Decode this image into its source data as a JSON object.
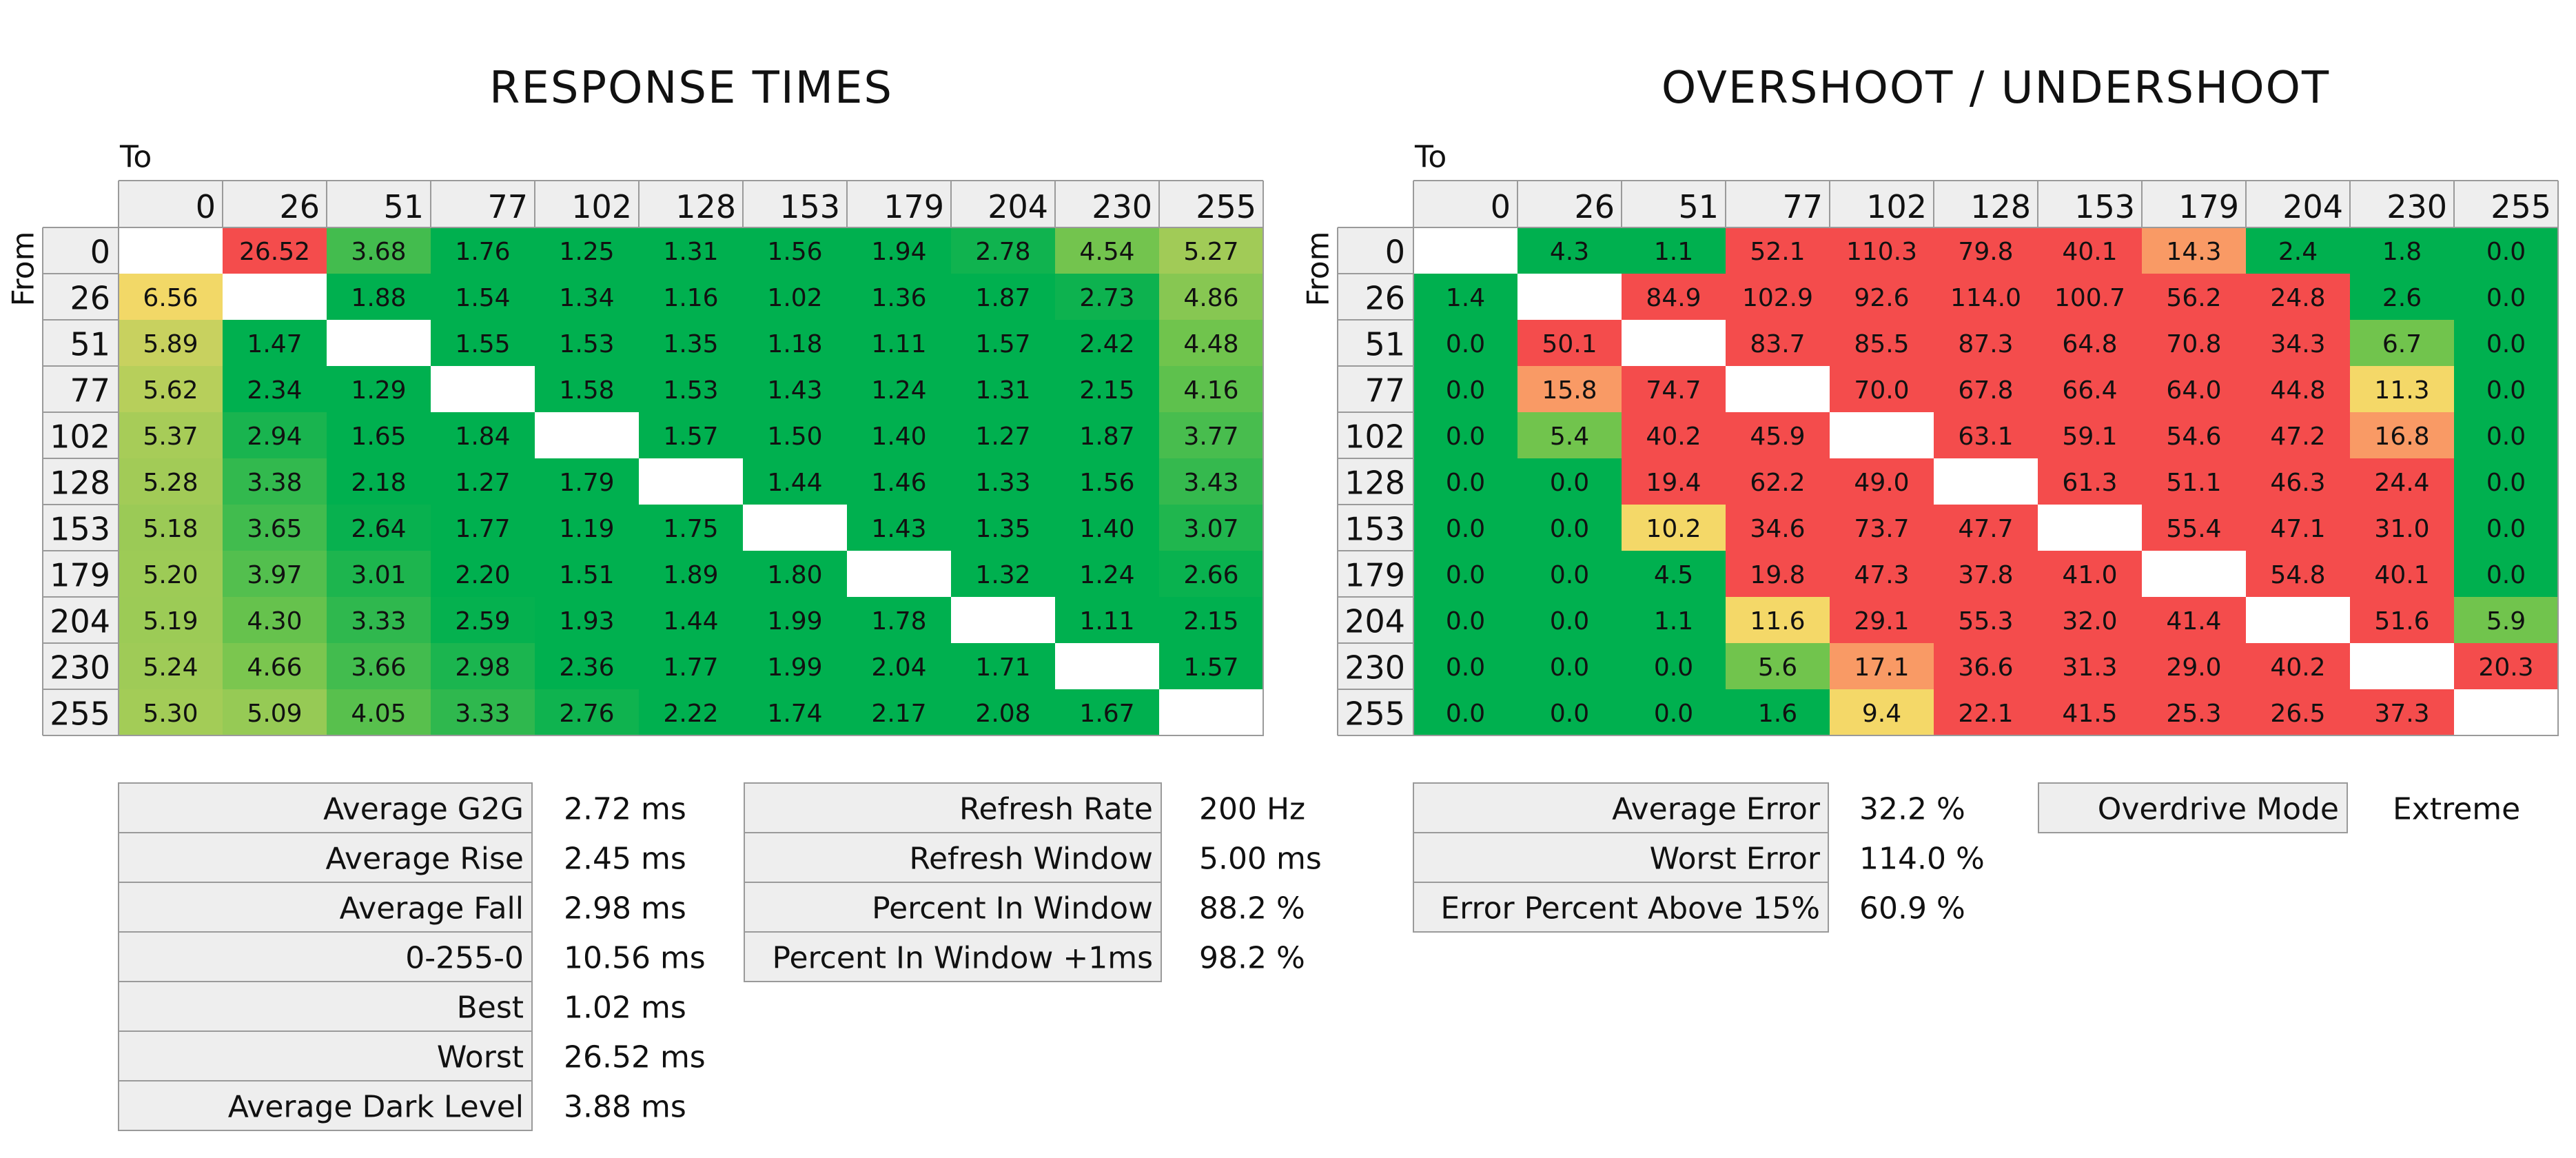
{
  "chart_data": [
    {
      "type": "heatmap",
      "title": "RESPONSE TIMES",
      "xlabel": "To",
      "ylabel": "From",
      "x": [
        "0",
        "26",
        "51",
        "77",
        "102",
        "128",
        "153",
        "179",
        "204",
        "230",
        "255"
      ],
      "y": [
        "0",
        "26",
        "51",
        "77",
        "102",
        "128",
        "153",
        "179",
        "204",
        "230",
        "255"
      ],
      "values": [
        [
          null,
          26.52,
          3.68,
          1.76,
          1.25,
          1.31,
          1.56,
          1.94,
          2.78,
          4.54,
          5.27
        ],
        [
          6.56,
          null,
          1.88,
          1.54,
          1.34,
          1.16,
          1.02,
          1.36,
          1.87,
          2.73,
          4.86
        ],
        [
          5.89,
          1.47,
          null,
          1.55,
          1.53,
          1.35,
          1.18,
          1.11,
          1.57,
          2.42,
          4.48
        ],
        [
          5.62,
          2.34,
          1.29,
          null,
          1.58,
          1.53,
          1.43,
          1.24,
          1.31,
          2.15,
          4.16
        ],
        [
          5.37,
          2.94,
          1.65,
          1.84,
          null,
          1.57,
          1.5,
          1.4,
          1.27,
          1.87,
          3.77
        ],
        [
          5.28,
          3.38,
          2.18,
          1.27,
          1.79,
          null,
          1.44,
          1.46,
          1.33,
          1.56,
          3.43
        ],
        [
          5.18,
          3.65,
          2.64,
          1.77,
          1.19,
          1.75,
          null,
          1.43,
          1.35,
          1.4,
          3.07
        ],
        [
          5.2,
          3.97,
          3.01,
          2.2,
          1.51,
          1.89,
          1.8,
          null,
          1.32,
          1.24,
          2.66
        ],
        [
          5.19,
          4.3,
          3.33,
          2.59,
          1.93,
          1.44,
          1.99,
          1.78,
          null,
          1.11,
          2.15
        ],
        [
          5.24,
          4.66,
          3.66,
          2.98,
          2.36,
          1.77,
          1.99,
          2.04,
          1.71,
          null,
          1.57
        ],
        [
          5.3,
          5.09,
          4.05,
          3.33,
          2.76,
          2.22,
          1.74,
          2.17,
          2.08,
          1.67,
          null
        ]
      ],
      "labels": [
        [
          "",
          "26.52",
          "3.68",
          "1.76",
          "1.25",
          "1.31",
          "1.56",
          "1.94",
          "2.78",
          "4.54",
          "5.27"
        ],
        [
          "6.56",
          "",
          "1.88",
          "1.54",
          "1.34",
          "1.16",
          "1.02",
          "1.36",
          "1.87",
          "2.73",
          "4.86"
        ],
        [
          "5.89",
          "1.47",
          "",
          "1.55",
          "1.53",
          "1.35",
          "1.18",
          "1.11",
          "1.57",
          "2.42",
          "4.48"
        ],
        [
          "5.62",
          "2.34",
          "1.29",
          "",
          "1.58",
          "1.53",
          "1.43",
          "1.24",
          "1.31",
          "2.15",
          "4.16"
        ],
        [
          "5.37",
          "2.94",
          "1.65",
          "1.84",
          "",
          "1.57",
          "1.50",
          "1.40",
          "1.27",
          "1.87",
          "3.77"
        ],
        [
          "5.28",
          "3.38",
          "2.18",
          "1.27",
          "1.79",
          "",
          "1.44",
          "1.46",
          "1.33",
          "1.56",
          "3.43"
        ],
        [
          "5.18",
          "3.65",
          "2.64",
          "1.77",
          "1.19",
          "1.75",
          "",
          "1.43",
          "1.35",
          "1.40",
          "3.07"
        ],
        [
          "5.20",
          "3.97",
          "3.01",
          "2.20",
          "1.51",
          "1.89",
          "1.80",
          "",
          "1.32",
          "1.24",
          "2.66"
        ],
        [
          "5.19",
          "4.30",
          "3.33",
          "2.59",
          "1.93",
          "1.44",
          "1.99",
          "1.78",
          "",
          "1.11",
          "2.15"
        ],
        [
          "5.24",
          "4.66",
          "3.66",
          "2.98",
          "2.36",
          "1.77",
          "1.99",
          "2.04",
          "1.71",
          "",
          "1.57"
        ],
        [
          "5.30",
          "5.09",
          "4.05",
          "3.33",
          "2.76",
          "2.22",
          "1.74",
          "2.17",
          "2.08",
          "1.67",
          ""
        ]
      ]
    },
    {
      "type": "heatmap",
      "title": "OVERSHOOT / UNDERSHOOT",
      "xlabel": "To",
      "ylabel": "From",
      "x": [
        "0",
        "26",
        "51",
        "77",
        "102",
        "128",
        "153",
        "179",
        "204",
        "230",
        "255"
      ],
      "y": [
        "0",
        "26",
        "51",
        "77",
        "102",
        "128",
        "153",
        "179",
        "204",
        "230",
        "255"
      ],
      "values": [
        [
          null,
          4.3,
          1.1,
          52.1,
          110.3,
          79.8,
          40.1,
          14.3,
          2.4,
          1.8,
          0.0
        ],
        [
          1.4,
          null,
          84.9,
          102.9,
          92.6,
          114.0,
          100.7,
          56.2,
          24.8,
          2.6,
          0.0
        ],
        [
          0.0,
          50.1,
          null,
          83.7,
          85.5,
          87.3,
          64.8,
          70.8,
          34.3,
          6.7,
          0.0
        ],
        [
          0.0,
          15.8,
          74.7,
          null,
          70.0,
          67.8,
          66.4,
          64.0,
          44.8,
          11.3,
          0.0
        ],
        [
          0.0,
          5.4,
          40.2,
          45.9,
          null,
          63.1,
          59.1,
          54.6,
          47.2,
          16.8,
          0.0
        ],
        [
          0.0,
          0.0,
          19.4,
          62.2,
          49.0,
          null,
          61.3,
          51.1,
          46.3,
          24.4,
          0.0
        ],
        [
          0.0,
          0.0,
          10.2,
          34.6,
          73.7,
          47.7,
          null,
          55.4,
          47.1,
          31.0,
          0.0
        ],
        [
          0.0,
          0.0,
          4.5,
          19.8,
          47.3,
          37.8,
          41.0,
          null,
          54.8,
          40.1,
          0.0
        ],
        [
          0.0,
          0.0,
          1.1,
          11.6,
          29.1,
          55.3,
          32.0,
          41.4,
          null,
          51.6,
          5.9
        ],
        [
          0.0,
          0.0,
          0.0,
          5.6,
          17.1,
          36.6,
          31.3,
          29.0,
          40.2,
          null,
          20.3
        ],
        [
          0.0,
          0.0,
          0.0,
          1.6,
          9.4,
          22.1,
          41.5,
          25.3,
          26.5,
          37.3,
          null
        ]
      ],
      "labels": [
        [
          "",
          "4.3",
          "1.1",
          "52.1",
          "110.3",
          "79.8",
          "40.1",
          "14.3",
          "2.4",
          "1.8",
          "0.0"
        ],
        [
          "1.4",
          "",
          "84.9",
          "102.9",
          "92.6",
          "114.0",
          "100.7",
          "56.2",
          "24.8",
          "2.6",
          "0.0"
        ],
        [
          "0.0",
          "50.1",
          "",
          "83.7",
          "85.5",
          "87.3",
          "64.8",
          "70.8",
          "34.3",
          "6.7",
          "0.0"
        ],
        [
          "0.0",
          "15.8",
          "74.7",
          "",
          "70.0",
          "67.8",
          "66.4",
          "64.0",
          "44.8",
          "11.3",
          "0.0"
        ],
        [
          "0.0",
          "5.4",
          "40.2",
          "45.9",
          "",
          "63.1",
          "59.1",
          "54.6",
          "47.2",
          "16.8",
          "0.0"
        ],
        [
          "0.0",
          "0.0",
          "19.4",
          "62.2",
          "49.0",
          "",
          "61.3",
          "51.1",
          "46.3",
          "24.4",
          "0.0"
        ],
        [
          "0.0",
          "0.0",
          "10.2",
          "34.6",
          "73.7",
          "47.7",
          "",
          "55.4",
          "47.1",
          "31.0",
          "0.0"
        ],
        [
          "0.0",
          "0.0",
          "4.5",
          "19.8",
          "47.3",
          "37.8",
          "41.0",
          "",
          "54.8",
          "40.1",
          "0.0"
        ],
        [
          "0.0",
          "0.0",
          "1.1",
          "11.6",
          "29.1",
          "55.3",
          "32.0",
          "41.4",
          "",
          "51.6",
          "5.9"
        ],
        [
          "0.0",
          "0.0",
          "0.0",
          "5.6",
          "17.1",
          "36.6",
          "31.3",
          "29.0",
          "40.2",
          "",
          "20.3"
        ],
        [
          "0.0",
          "0.0",
          "0.0",
          "1.6",
          "9.4",
          "22.1",
          "41.5",
          "25.3",
          "26.5",
          "37.3",
          ""
        ]
      ]
    }
  ],
  "stats": {
    "response": [
      {
        "label": "Average G2G",
        "value": "2.72 ms"
      },
      {
        "label": "Average Rise",
        "value": "2.45 ms"
      },
      {
        "label": "Average Fall",
        "value": "2.98 ms"
      },
      {
        "label": "0-255-0",
        "value": "10.56 ms"
      },
      {
        "label": "Best",
        "value": "1.02 ms"
      },
      {
        "label": "Worst",
        "value": "26.52 ms"
      },
      {
        "label": "Average Dark Level",
        "value": "3.88 ms"
      }
    ],
    "refresh": [
      {
        "label": "Refresh Rate",
        "value": "200 Hz"
      },
      {
        "label": "Refresh Window",
        "value": "5.00 ms"
      },
      {
        "label": "Percent In Window",
        "value": "88.2 %"
      },
      {
        "label": "Percent In Window +1ms",
        "value": "98.2 %"
      }
    ],
    "error": [
      {
        "label": "Average Error",
        "value": "32.2 %"
      },
      {
        "label": "Worst Error",
        "value": "114.0 %"
      },
      {
        "label": "Error Percent Above 15%",
        "value": "60.9 %"
      }
    ],
    "overdrive": [
      {
        "label": "Overdrive Mode",
        "value": "Extreme"
      }
    ]
  },
  "colors": {
    "green": "#00b04f",
    "light_green": "#71c44d",
    "yellow": "#f4d868",
    "orange": "#f99a65",
    "red": "#f44c4c",
    "header_bg": "#eeeeee",
    "border": "#9a9a9a"
  }
}
